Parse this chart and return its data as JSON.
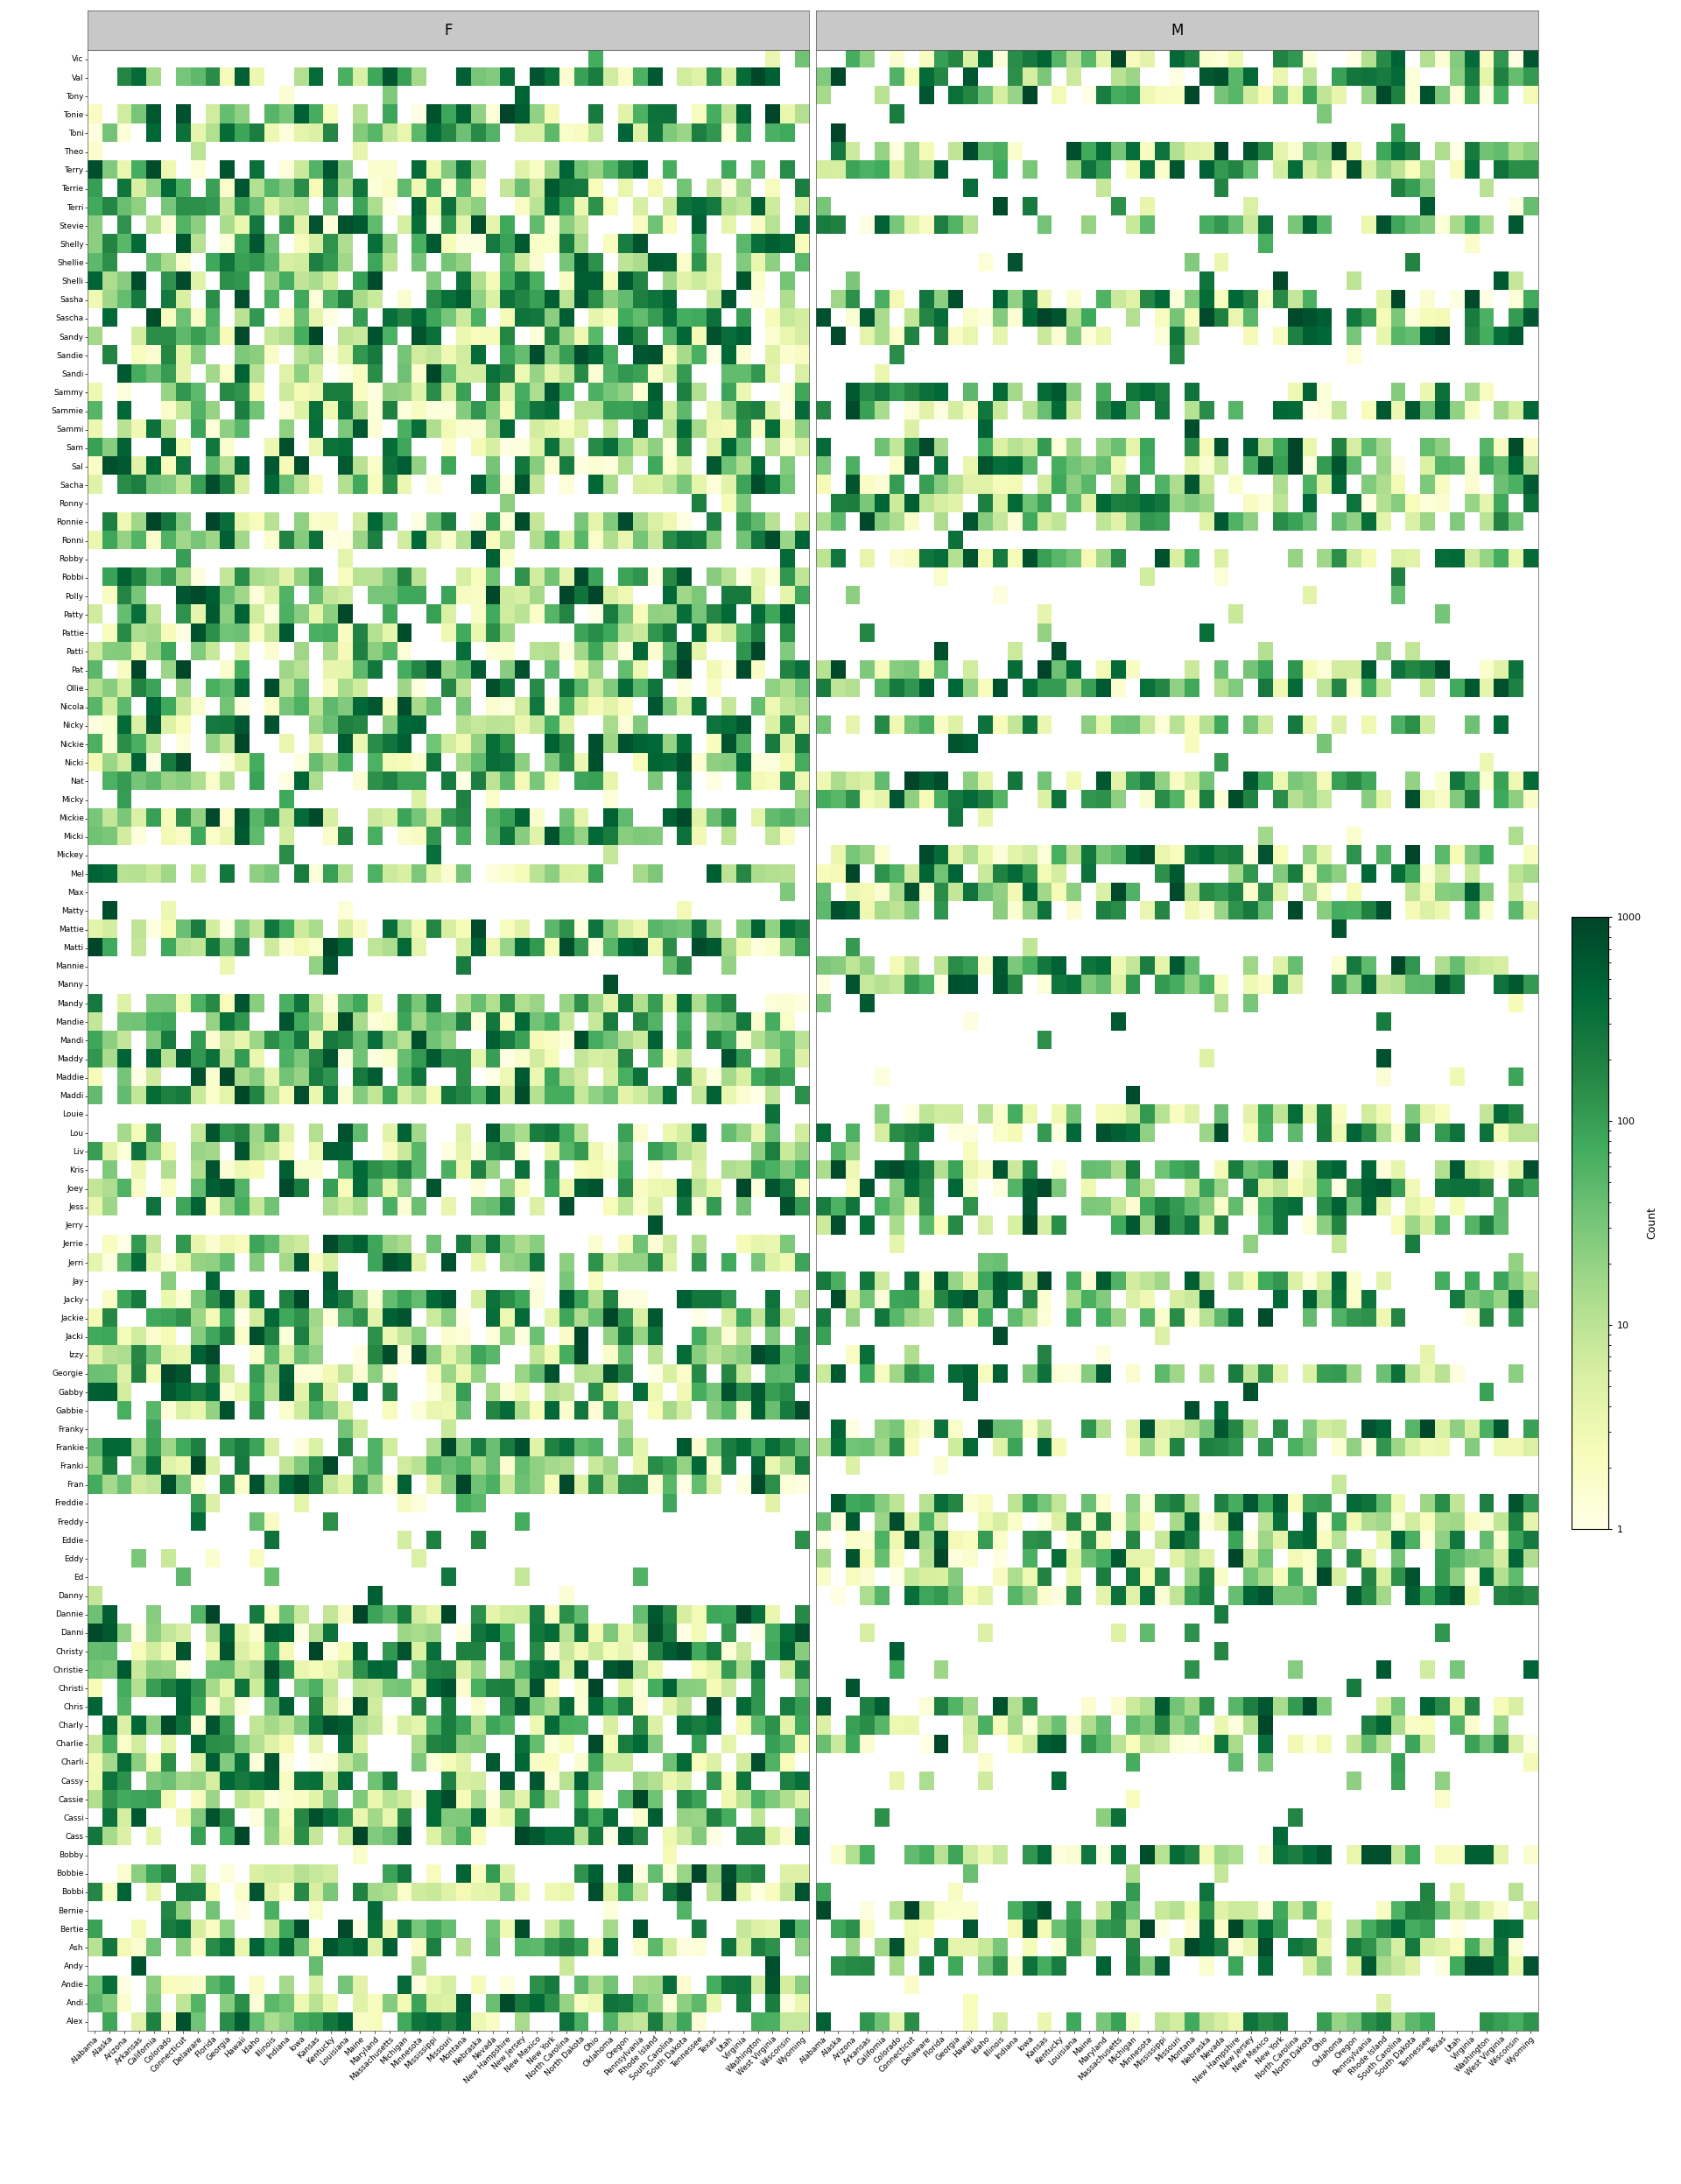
{
  "nicknames_top_to_bottom": [
    "Vic",
    "Val",
    "Tony",
    "Tonie",
    "Toni",
    "Theo",
    "Terry",
    "Terrie",
    "Terri",
    "Stevie",
    "Shelly",
    "Shellie",
    "Shelli",
    "Sasha",
    "Sascha",
    "Sandy",
    "Sandie",
    "Sandi",
    "Sammy",
    "Sammie",
    "Sammi",
    "Sam",
    "Sal",
    "Sacha",
    "Ronny",
    "Ronnie",
    "Ronni",
    "Robby",
    "Robbi",
    "Polly",
    "Patty",
    "Pattie",
    "Patti",
    "Pat",
    "Ollie",
    "Nicola",
    "Nicky",
    "Nickie",
    "Nicki",
    "Nat",
    "Micky",
    "Mickie",
    "Micki",
    "Mickey",
    "Mel",
    "Max",
    "Matty",
    "Mattie",
    "Matti",
    "Mannie",
    "Manny",
    "Mandy",
    "Mandie",
    "Mandi",
    "Maddy",
    "Maddie",
    "Maddi",
    "Louie",
    "Lou",
    "Liv",
    "Kris",
    "Joey",
    "Jess",
    "Jerry",
    "Jerrie",
    "Jerri",
    "Jay",
    "Jacky",
    "Jackie",
    "Jacki",
    "Izzy",
    "Georgie",
    "Gabby",
    "Gabbie",
    "Franky",
    "Frankie",
    "Franki",
    "Fran",
    "Freddie",
    "Freddy",
    "Eddie",
    "Eddy",
    "Ed",
    "Danny",
    "Dannie",
    "Danni",
    "Christy",
    "Christie",
    "Christi",
    "Chris",
    "Charly",
    "Charlie",
    "Charli",
    "Cassy",
    "Cassie",
    "Cassi",
    "Cass",
    "Bobby",
    "Bobbie",
    "Bobbi",
    "Bernie",
    "Bertie",
    "Ash",
    "Andy",
    "Andie",
    "Andi",
    "Alex"
  ],
  "states": [
    "Alabama",
    "Alaska",
    "Arizona",
    "Arkansas",
    "California",
    "Colorado",
    "Connecticut",
    "Delaware",
    "Florida",
    "Georgia",
    "Hawaii",
    "Idaho",
    "Illinois",
    "Indiana",
    "Iowa",
    "Kansas",
    "Kentucky",
    "Louisiana",
    "Maine",
    "Maryland",
    "Massachusetts",
    "Michigan",
    "Minnesota",
    "Mississippi",
    "Missouri",
    "Montana",
    "Nebraska",
    "Nevada",
    "New Hampshire",
    "New Jersey",
    "New Mexico",
    "New York",
    "North Carolina",
    "North Dakota",
    "Ohio",
    "Oklahoma",
    "Oregon",
    "Pennsylvania",
    "Rhode Island",
    "South Carolina",
    "South Dakota",
    "Tennessee",
    "Texas",
    "Utah",
    "Virginia",
    "Washington",
    "West Virginia",
    "Wisconsin",
    "Wyoming"
  ],
  "colorscale_min": 1,
  "colorscale_max": 1000,
  "header_color": "#c8c8c8",
  "tick_fontsize": 6.5,
  "cb_label_fontsize": 9,
  "cb_tick_fontsize": 8,
  "name_gender_type": {
    "Vic": "M",
    "Val": "B",
    "Tony": "M",
    "Tonie": "F",
    "Toni": "F",
    "Theo": "M",
    "Terry": "B",
    "Terrie": "F",
    "Terri": "F",
    "Stevie": "B",
    "Shelly": "F",
    "Shellie": "F",
    "Shelli": "F",
    "Sasha": "B",
    "Sascha": "B",
    "Sandy": "B",
    "Sandie": "F",
    "Sandi": "F",
    "Sammy": "B",
    "Sammie": "B",
    "Sammi": "F",
    "Sam": "B",
    "Sal": "B",
    "Sacha": "B",
    "Ronny": "M",
    "Ronnie": "B",
    "Ronni": "F",
    "Robby": "M",
    "Robbi": "F",
    "Polly": "F",
    "Patty": "F",
    "Pattie": "F",
    "Patti": "F",
    "Pat": "B",
    "Ollie": "B",
    "Nicola": "F",
    "Nicky": "B",
    "Nickie": "F",
    "Nicki": "F",
    "Nat": "B",
    "Micky": "M",
    "Mickie": "F",
    "Micki": "F",
    "Mickey": "M",
    "Mel": "B",
    "Max": "M",
    "Matty": "M",
    "Mattie": "F",
    "Matti": "F",
    "Mannie": "M",
    "Manny": "M",
    "Mandy": "F",
    "Mandie": "F",
    "Mandi": "F",
    "Maddy": "F",
    "Maddie": "F",
    "Maddi": "F",
    "Louie": "M",
    "Lou": "B",
    "Liv": "F",
    "Kris": "B",
    "Joey": "B",
    "Jess": "B",
    "Jerry": "M",
    "Jerrie": "F",
    "Jerri": "F",
    "Jay": "M",
    "Jacky": "B",
    "Jackie": "B",
    "Jacki": "F",
    "Izzy": "F",
    "Georgie": "B",
    "Gabby": "F",
    "Gabbie": "F",
    "Franky": "M",
    "Frankie": "B",
    "Franki": "F",
    "Fran": "F",
    "Freddie": "M",
    "Freddy": "M",
    "Eddie": "M",
    "Eddy": "M",
    "Ed": "M",
    "Danny": "M",
    "Dannie": "F",
    "Danni": "F",
    "Christy": "F",
    "Christie": "F",
    "Christi": "F",
    "Chris": "B",
    "Charly": "B",
    "Charlie": "B",
    "Charli": "F",
    "Cassy": "F",
    "Cassie": "F",
    "Cassi": "F",
    "Cass": "F",
    "Bobby": "M",
    "Bobbie": "F",
    "Bobbi": "F",
    "Bernie": "M",
    "Bertie": "B",
    "Ash": "B",
    "Andy": "M",
    "Andie": "F",
    "Andi": "F",
    "Alex": "B"
  }
}
